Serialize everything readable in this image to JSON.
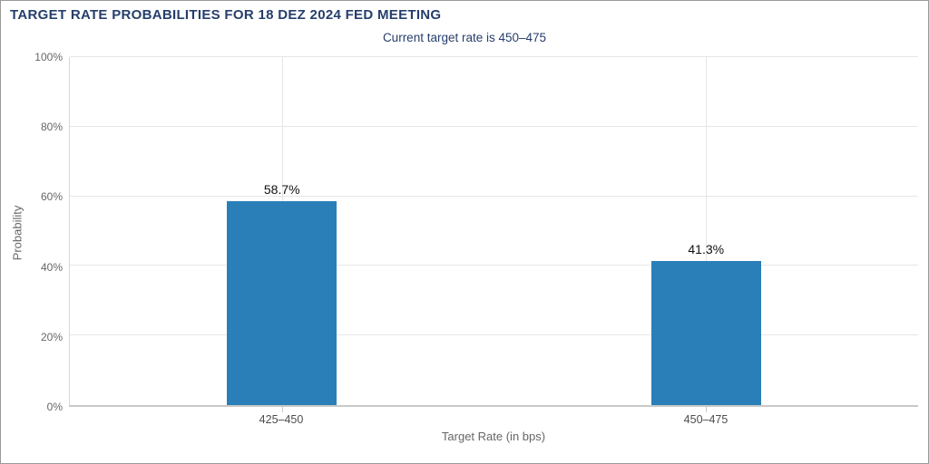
{
  "window": {
    "background": "#ffffff",
    "border_color": "#999999"
  },
  "chart_data": {
    "type": "bar",
    "title": "TARGET RATE PROBABILITIES FOR 18 DEZ 2024 FED MEETING",
    "subtitle": "Current target rate is 450–475",
    "categories": [
      "425–450",
      "450–475"
    ],
    "values": [
      58.7,
      41.3
    ],
    "data_labels": [
      "58.7%",
      "41.3%"
    ],
    "xlabel": "Target Rate (in bps)",
    "ylabel": "Probability",
    "ylim": [
      0,
      100
    ],
    "yticks": [
      0,
      20,
      40,
      60,
      80,
      100
    ],
    "ytick_labels": [
      "0%",
      "20%",
      "40%",
      "60%",
      "80%",
      "100%"
    ],
    "grid": {
      "horizontal": true,
      "vertical_category_lines": true
    },
    "legend": "none",
    "colors": {
      "bar": "#2a7fb8",
      "title_text": "#263e6c",
      "axis_text": "#666666",
      "category_text": "#4d4d4d",
      "data_label_text": "#111111",
      "gridline": "#e6e6e6",
      "axis_line": "#c9c9c9"
    }
  }
}
